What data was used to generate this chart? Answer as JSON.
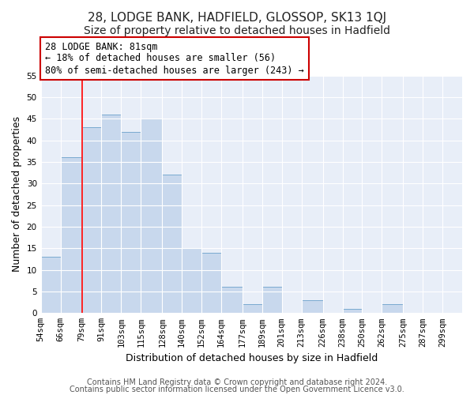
{
  "title": "28, LODGE BANK, HADFIELD, GLOSSOP, SK13 1QJ",
  "subtitle": "Size of property relative to detached houses in Hadfield",
  "xlabel": "Distribution of detached houses by size in Hadfield",
  "ylabel": "Number of detached properties",
  "footer_line1": "Contains HM Land Registry data © Crown copyright and database right 2024.",
  "footer_line2": "Contains public sector information licensed under the Open Government Licence v3.0.",
  "bin_edges": [
    54,
    66,
    79,
    91,
    103,
    115,
    128,
    140,
    152,
    164,
    177,
    189,
    201,
    213,
    226,
    238,
    250,
    262,
    275,
    287,
    299
  ],
  "bar_heights": [
    13,
    36,
    43,
    46,
    42,
    45,
    32,
    15,
    14,
    6,
    2,
    6,
    0,
    3,
    0,
    1,
    0,
    2,
    0,
    0
  ],
  "tick_labels": [
    "54sqm",
    "66sqm",
    "79sqm",
    "91sqm",
    "103sqm",
    "115sqm",
    "128sqm",
    "140sqm",
    "152sqm",
    "164sqm",
    "177sqm",
    "189sqm",
    "201sqm",
    "213sqm",
    "226sqm",
    "238sqm",
    "250sqm",
    "262sqm",
    "275sqm",
    "287sqm",
    "299sqm"
  ],
  "bar_color": "#c8d8ed",
  "bar_edge_color": "#7aaad0",
  "red_line_x": 79,
  "ylim": [
    0,
    55
  ],
  "yticks": [
    0,
    5,
    10,
    15,
    20,
    25,
    30,
    35,
    40,
    45,
    50,
    55
  ],
  "annotation_title": "28 LODGE BANK: 81sqm",
  "annotation_line1": "← 18% of detached houses are smaller (56)",
  "annotation_line2": "80% of semi-detached houses are larger (243) →",
  "annotation_box_color": "#ffffff",
  "annotation_box_edge": "#cc0000",
  "background_color": "#ffffff",
  "plot_bg_color": "#e8eef8",
  "grid_color": "#ffffff",
  "title_fontsize": 11,
  "subtitle_fontsize": 10,
  "axis_label_fontsize": 9,
  "tick_fontsize": 7.5,
  "footer_fontsize": 7,
  "annotation_fontsize": 8.5
}
